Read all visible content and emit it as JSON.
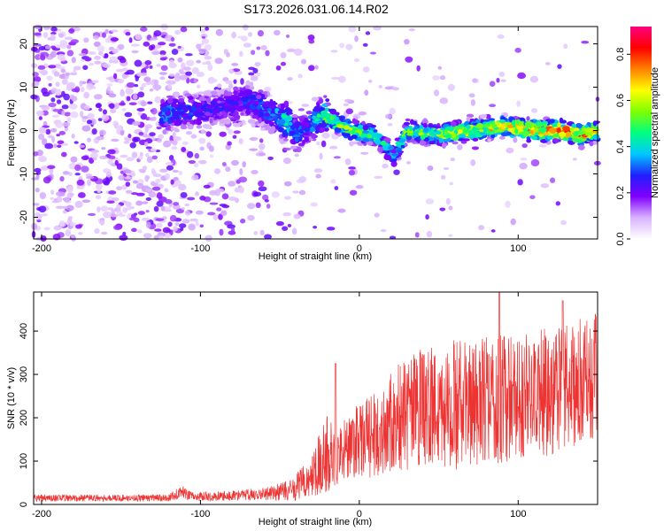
{
  "title": "S173.2026.031.06.14.R02",
  "chart_data": [
    {
      "type": "heatmap",
      "title": "",
      "xlabel": "Height of straight line (km)",
      "ylabel": "Frequency (Hz)",
      "xlim": [
        -205,
        150
      ],
      "ylim": [
        -25,
        24
      ],
      "xticks": [
        -200,
        -100,
        0,
        100
      ],
      "yticks": [
        -20,
        -10,
        0,
        10,
        20
      ],
      "colorbar": {
        "label": "Normalized spectral amplitude",
        "range": [
          0,
          0.92
        ],
        "ticks": [
          0.0,
          0.2,
          0.4,
          0.6,
          0.8
        ],
        "tick_labels": [
          "0.0",
          "0.2",
          "0.4",
          "0.6",
          "0.8"
        ],
        "colors": [
          "#ffffff",
          "#d9b3ff",
          "#8000ff",
          "#2020ff",
          "#00c8ff",
          "#00ff80",
          "#80ff00",
          "#ffff00",
          "#ff8000",
          "#ff0000",
          "#ff0080"
        ]
      },
      "ridge": [
        {
          "x": -120,
          "y": 4,
          "a": 0.35
        },
        {
          "x": -90,
          "y": 5,
          "a": 0.25
        },
        {
          "x": -70,
          "y": 7,
          "a": 0.3
        },
        {
          "x": -55,
          "y": 4,
          "a": 0.35
        },
        {
          "x": -45,
          "y": 2,
          "a": 0.45
        },
        {
          "x": -40,
          "y": -1,
          "a": 0.35
        },
        {
          "x": -32,
          "y": 1,
          "a": 0.3
        },
        {
          "x": -22,
          "y": 4,
          "a": 0.55
        },
        {
          "x": -15,
          "y": 2,
          "a": 0.6
        },
        {
          "x": -5,
          "y": 0,
          "a": 0.55
        },
        {
          "x": 10,
          "y": -1,
          "a": 0.5
        },
        {
          "x": 22,
          "y": -6,
          "a": 0.4
        },
        {
          "x": 30,
          "y": 0,
          "a": 0.55
        },
        {
          "x": 50,
          "y": -1,
          "a": 0.6
        },
        {
          "x": 70,
          "y": 0,
          "a": 0.65
        },
        {
          "x": 90,
          "y": 1,
          "a": 0.7
        },
        {
          "x": 110,
          "y": 0,
          "a": 0.75
        },
        {
          "x": 125,
          "y": 0,
          "a": 0.85
        },
        {
          "x": 140,
          "y": -1,
          "a": 0.8
        },
        {
          "x": 150,
          "y": 0,
          "a": 0.7
        }
      ]
    },
    {
      "type": "line",
      "title": "",
      "xlabel": "Height of straight line (km)",
      "ylabel": "SNR (10 * v/v)",
      "xlim": [
        -205,
        150
      ],
      "ylim": [
        0,
        490
      ],
      "xticks": [
        -200,
        -100,
        0,
        100
      ],
      "yticks": [
        0,
        100,
        200,
        300,
        400
      ],
      "color": "#ee3333",
      "series": [
        {
          "name": "SNR",
          "x": [
            -205,
            -180,
            -150,
            -120,
            -112,
            -105,
            -80,
            -60,
            -45,
            -35,
            -28,
            -20,
            -15,
            -5,
            10,
            25,
            40,
            60,
            80,
            100,
            120,
            140,
            150
          ],
          "values": [
            15,
            15,
            15,
            15,
            30,
            18,
            20,
            25,
            30,
            50,
            80,
            120,
            110,
            140,
            160,
            200,
            220,
            230,
            240,
            250,
            260,
            280,
            300
          ],
          "spread": [
            8,
            8,
            8,
            8,
            15,
            10,
            12,
            15,
            25,
            40,
            60,
            90,
            70,
            80,
            100,
            130,
            140,
            150,
            150,
            150,
            150,
            150,
            140
          ],
          "peaks": [
            {
              "x": -15,
              "y": 325
            },
            {
              "x": 88,
              "y": 490
            },
            {
              "x": 128,
              "y": 470
            }
          ]
        }
      ]
    }
  ]
}
